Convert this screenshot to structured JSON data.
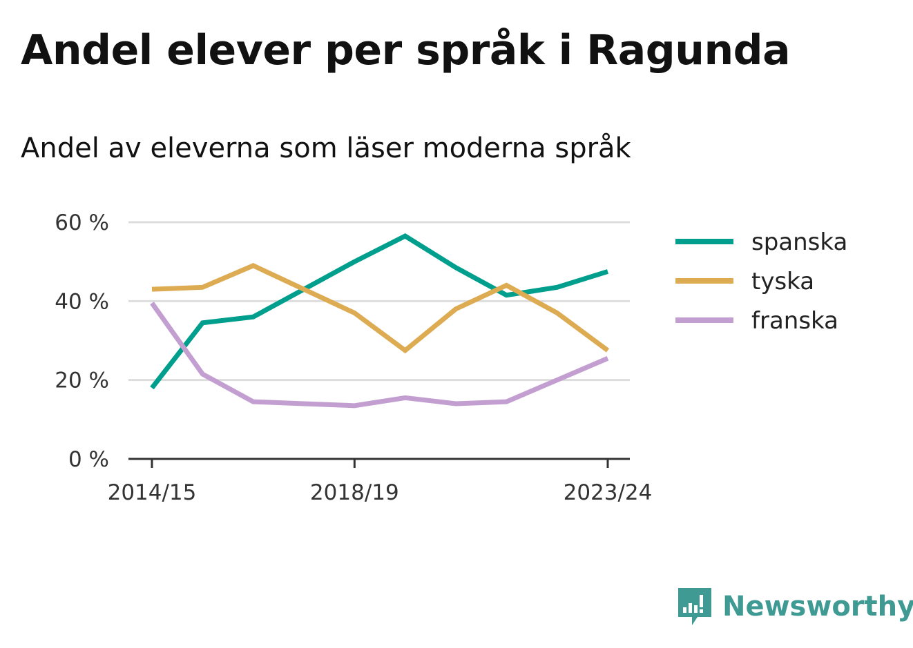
{
  "title": "Andel elever per språk i Ragunda",
  "subtitle": "Andel av eleverna som läser moderna språk",
  "chart_data": {
    "type": "line",
    "x": [
      "2014/15",
      "2015/16",
      "2016/17",
      "2017/18",
      "2018/19",
      "2019/20",
      "2020/21",
      "2021/22",
      "2022/23",
      "2023/24"
    ],
    "x_tick_labels": [
      "2014/15",
      "2018/19",
      "2023/24"
    ],
    "y_ticks": [
      0,
      20,
      40,
      60
    ],
    "y_tick_labels": [
      "0 %",
      "20 %",
      "40 %",
      "60 %"
    ],
    "ylim": [
      0,
      60
    ],
    "grid": "horizontal",
    "legend": "right",
    "series": [
      {
        "name": "spanska",
        "color": "#009e8c",
        "values": [
          18,
          34.5,
          36,
          43,
          50,
          56.5,
          48.5,
          41.5,
          43.5,
          47.5
        ]
      },
      {
        "name": "tyska",
        "color": "#dcab52",
        "values": [
          43,
          43.5,
          49,
          43,
          37,
          27.5,
          38,
          44,
          37,
          27.5
        ]
      },
      {
        "name": "franska",
        "color": "#c29fd0",
        "values": [
          39.5,
          21.5,
          14.5,
          14,
          13.5,
          15.5,
          14,
          14.5,
          20,
          25.5
        ]
      }
    ]
  },
  "brand": {
    "name": "Newsworthy",
    "icon": "newsworthy-logo-icon",
    "color": "#3f9a94"
  }
}
